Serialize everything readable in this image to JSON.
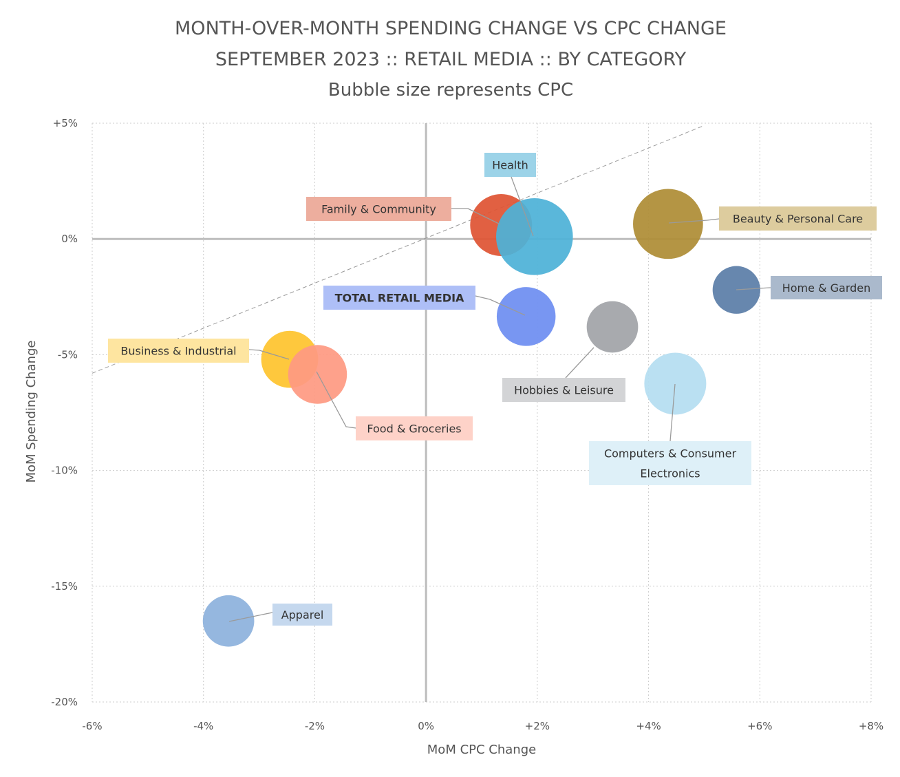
{
  "chart_data": {
    "type": "scatter",
    "title_lines": [
      "MONTH-OVER-MONTH SPENDING CHANGE VS CPC CHANGE",
      "SEPTEMBER 2023 :: RETAIL MEDIA :: BY CATEGORY",
      "Bubble size represents CPC"
    ],
    "xlabel": "MoM CPC Change",
    "ylabel": "MoM Spending Change",
    "xlim": [
      -6,
      8
    ],
    "ylim": [
      -20,
      5
    ],
    "x_ticks": [
      -6,
      -4,
      -2,
      0,
      2,
      4,
      6,
      8
    ],
    "y_ticks": [
      5,
      0,
      -5,
      -10,
      -15,
      -20
    ],
    "x_tick_labels": [
      "-6%",
      "-4%",
      "-2%",
      "0%",
      "+2%",
      "+4%",
      "+6%",
      "+8%"
    ],
    "y_tick_labels": [
      "+5%",
      "0%",
      "-5%",
      "-10%",
      "-15%",
      "-20%"
    ],
    "grid": true,
    "reference_line": {
      "from": [
        -6,
        -5.8
      ],
      "to": [
        5,
        4.9
      ]
    },
    "points": [
      {
        "name": "Apparel",
        "x": -3.55,
        "y": -16.5,
        "size": 0.83,
        "color": "#8DB2DD",
        "label_bg": "#C5D8EE",
        "label_lines": [
          "Apparel"
        ],
        "bold": false
      },
      {
        "name": "Business & Industrial",
        "x": -2.45,
        "y": -5.2,
        "size": 0.92,
        "color": "#FEC42E",
        "label_bg": "#FEE5A0",
        "label_lines": [
          "Business & Industrial"
        ],
        "bold": false
      },
      {
        "name": "Food & Groceries",
        "x": -1.95,
        "y": -5.85,
        "size": 0.95,
        "color": "#FE9A82",
        "label_bg": "#FED2C8",
        "label_lines": [
          "Food & Groceries"
        ],
        "bold": false
      },
      {
        "name": "Family & Community",
        "x": 1.35,
        "y": 0.6,
        "size": 1.0,
        "color": "#DF5434",
        "label_bg": "#EDAE9E",
        "label_lines": [
          "Family & Community"
        ],
        "bold": false
      },
      {
        "name": "Health",
        "x": 1.95,
        "y": 0.1,
        "size": 1.24,
        "color": "#4EB2D7",
        "label_bg": "#9CD3E8",
        "label_lines": [
          "Health"
        ],
        "bold": false
      },
      {
        "name": "TOTAL RETAIL MEDIA",
        "x": 1.8,
        "y": -3.35,
        "size": 0.95,
        "color": "#6E8EF1",
        "label_bg": "#AEBFF7",
        "label_lines": [
          "TOTAL RETAIL MEDIA"
        ],
        "bold": true
      },
      {
        "name": "Beauty & Personal Care",
        "x": 4.35,
        "y": 0.65,
        "size": 1.13,
        "color": "#AE8D36",
        "label_bg": "#DDCC9E",
        "label_lines": [
          "Beauty & Personal Care"
        ],
        "bold": false
      },
      {
        "name": "Home & Garden",
        "x": 5.58,
        "y": -2.2,
        "size": 0.77,
        "color": "#5B7EA8",
        "label_bg": "#AAB9CC",
        "label_lines": [
          "Home & Garden"
        ],
        "bold": false
      },
      {
        "name": "Hobbies & Leisure",
        "x": 3.35,
        "y": -3.8,
        "size": 0.83,
        "color": "#A1A4A8",
        "label_bg": "#D3D4D6",
        "label_lines": [
          "Hobbies & Leisure"
        ],
        "bold": false
      },
      {
        "name": "Computers & Consumer Electronics",
        "x": 4.48,
        "y": -6.25,
        "size": 1.0,
        "color": "#B5DEF1",
        "label_bg": "#DEF0F8",
        "label_lines": [
          "Computers & Consumer",
          "Electronics"
        ],
        "bold": false
      }
    ]
  }
}
